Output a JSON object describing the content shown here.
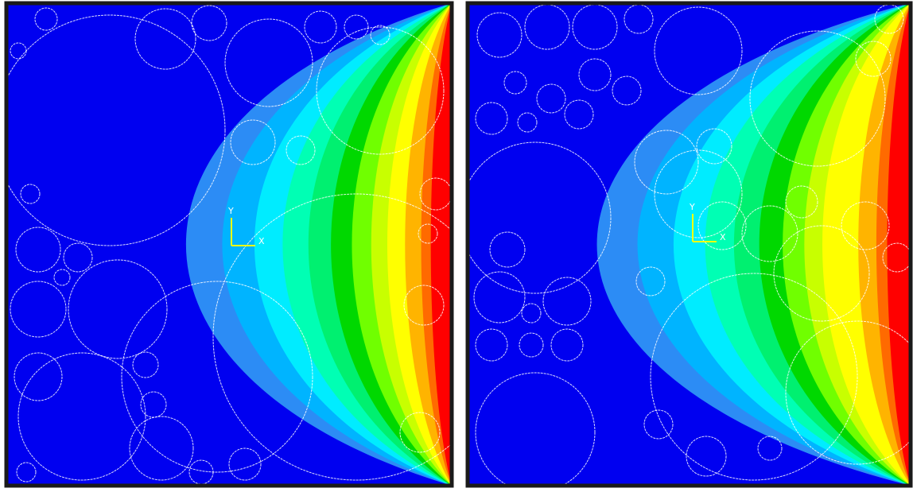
{
  "panels": [
    {
      "axis_labels": {
        "y": "Y",
        "x": "X"
      }
    },
    {
      "axis_labels": {
        "y": "Y",
        "x": "X"
      }
    }
  ]
}
